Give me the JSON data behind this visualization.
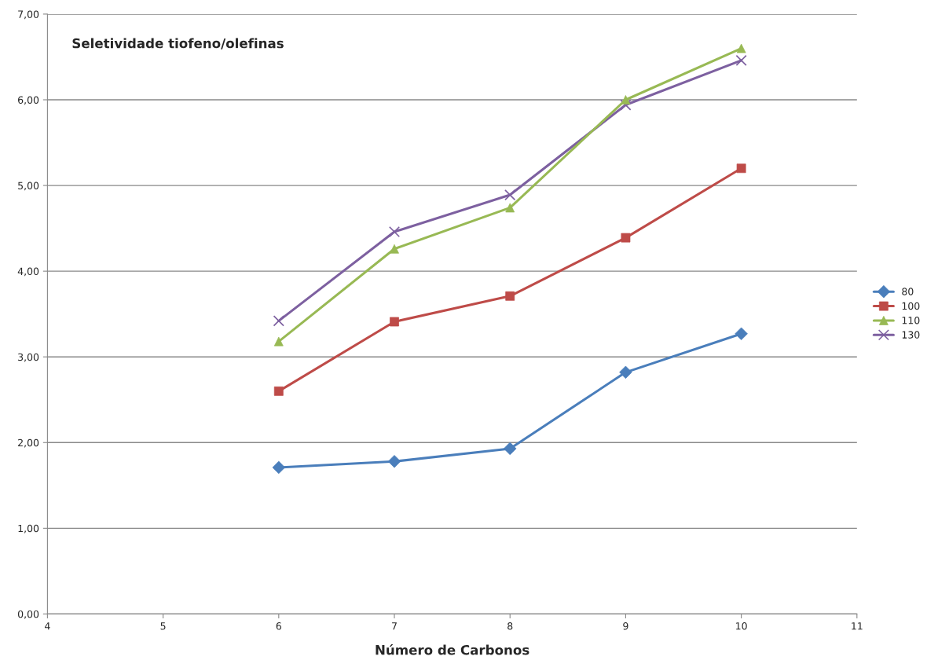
{
  "chart_data": {
    "type": "line",
    "title": "Seletividade tiofeno/olefinas",
    "xlabel": "Número de Carbonos",
    "x": [
      6,
      7,
      8,
      9,
      10
    ],
    "series": [
      {
        "name": "80",
        "color": "#4a7ebb",
        "marker": "diamond",
        "values": [
          1.71,
          1.78,
          1.93,
          2.82,
          3.27
        ]
      },
      {
        "name": "100",
        "color": "#be4b48",
        "marker": "square",
        "values": [
          2.6,
          3.41,
          3.71,
          4.39,
          5.2
        ]
      },
      {
        "name": "110",
        "color": "#98b954",
        "marker": "triangle",
        "values": [
          3.18,
          4.26,
          4.74,
          6.0,
          6.6
        ]
      },
      {
        "name": "130",
        "color": "#7d60a0",
        "marker": "cross",
        "values": [
          3.42,
          4.46,
          4.89,
          5.94,
          6.46
        ]
      }
    ],
    "xlim": [
      4,
      11
    ],
    "xticks": [
      4,
      5,
      6,
      7,
      8,
      9,
      10,
      11
    ],
    "ylim": [
      0,
      7
    ],
    "yticks": [
      {
        "value": 0,
        "label": "0,00"
      },
      {
        "value": 1,
        "label": "1,00"
      },
      {
        "value": 2,
        "label": "2,00"
      },
      {
        "value": 3,
        "label": "3,00"
      },
      {
        "value": 4,
        "label": "4,00"
      },
      {
        "value": 5,
        "label": "5,00"
      },
      {
        "value": 6,
        "label": "6,00"
      },
      {
        "value": 7,
        "label": "7,00"
      }
    ],
    "grid": "y",
    "legend": "right",
    "line_style": "solid"
  }
}
